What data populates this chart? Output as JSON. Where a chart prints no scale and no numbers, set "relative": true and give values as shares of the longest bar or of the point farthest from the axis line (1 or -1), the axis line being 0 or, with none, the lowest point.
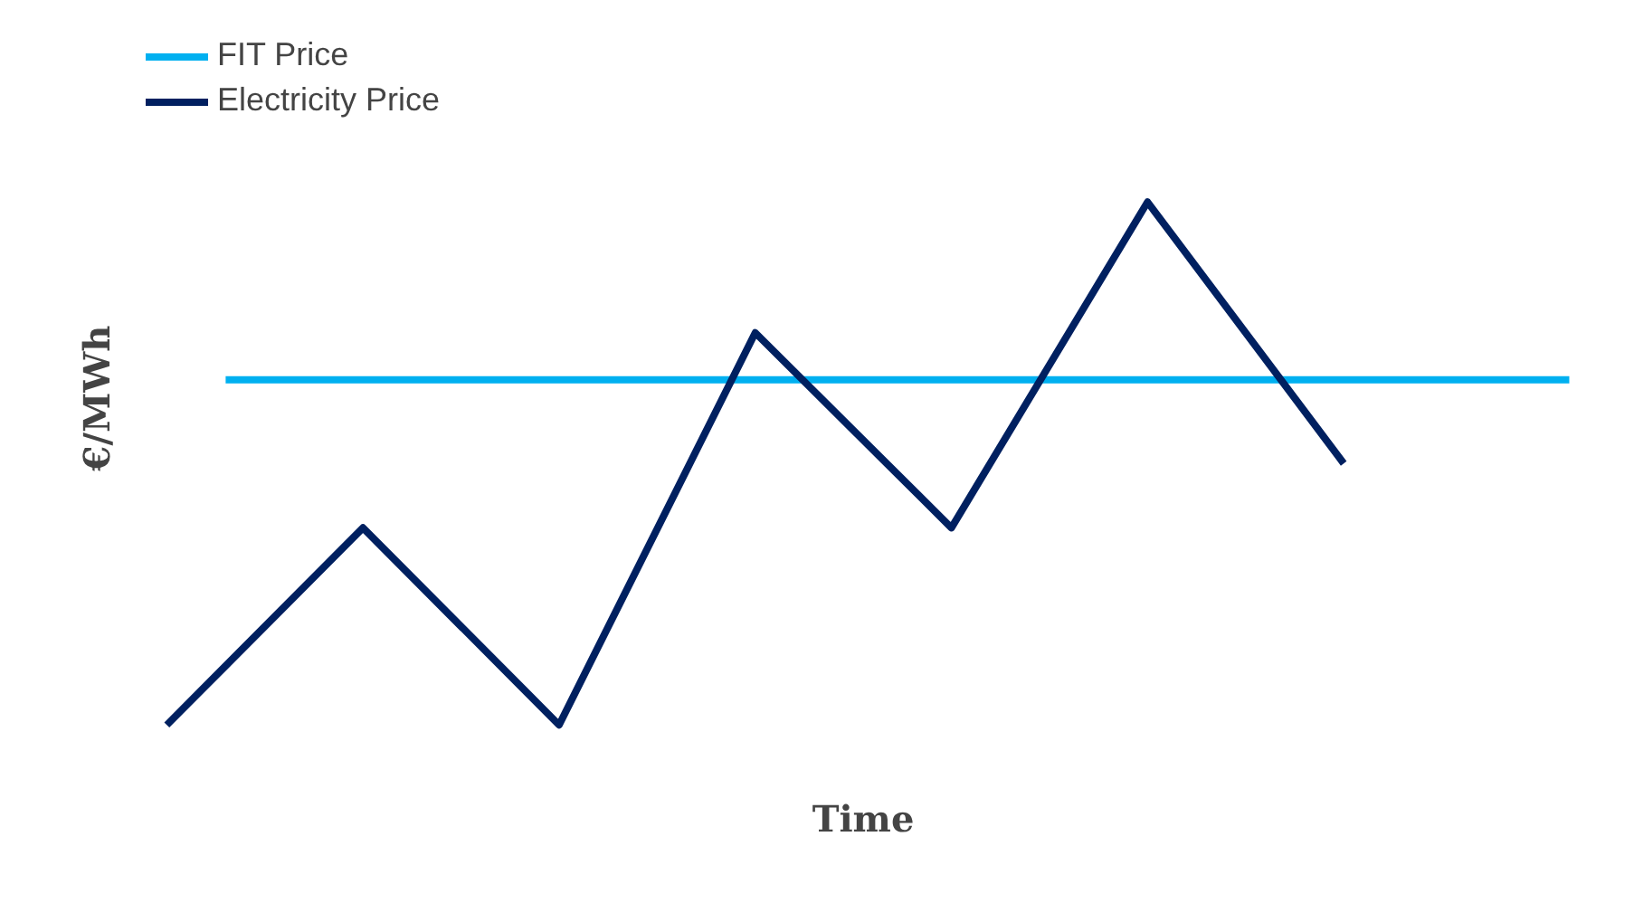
{
  "chart_data": {
    "type": "line",
    "relative": true,
    "xlabel": "Time",
    "ylabel": "€/MWh",
    "legend": "top left",
    "grid": false,
    "marker": "none",
    "categories": [
      null,
      null,
      null,
      null,
      null,
      null,
      null
    ],
    "series": [
      {
        "name": "Electricity Price",
        "color": "#002060",
        "values": [
          0,
          0.377,
          0,
          0.75,
          0.377,
          1,
          0.5
        ]
      }
    ],
    "ref_lines": [
      {
        "axis": "y",
        "value": 0.66,
        "label": "FIT Price",
        "color": "#00b0f0"
      }
    ]
  }
}
